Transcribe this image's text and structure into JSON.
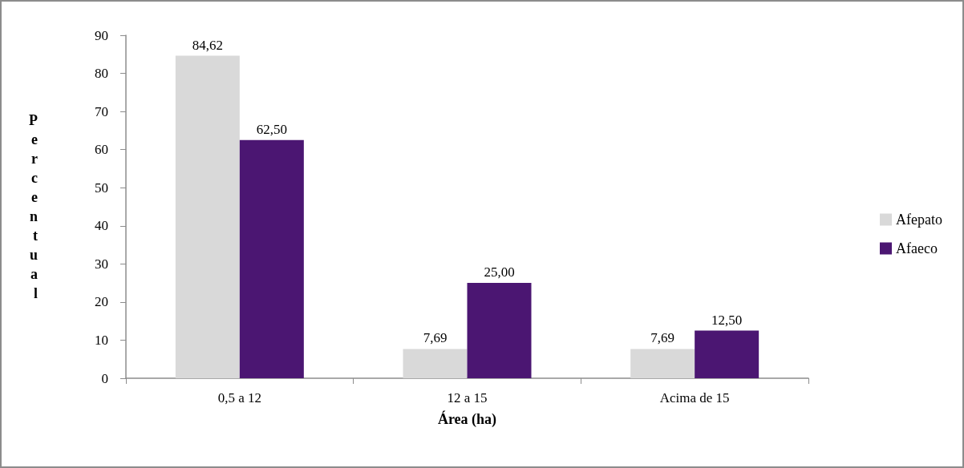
{
  "chart_data": {
    "type": "bar",
    "xlabel": "Área (ha)",
    "ylabel": "Percentual",
    "categories": [
      "0,5 a 12",
      "12 a 15",
      "Acima de 15"
    ],
    "series": [
      {
        "name": "Afepato",
        "color": "#d9d9d9",
        "values": [
          84.62,
          7.69,
          7.69
        ],
        "value_labels": [
          "84,62",
          "7,69",
          "7,69"
        ]
      },
      {
        "name": "Afaeco",
        "color": "#4b1672",
        "values": [
          62.5,
          25,
          12.5
        ],
        "value_labels": [
          "62,50",
          "25,00",
          "12,50"
        ]
      }
    ],
    "ylim": [
      0,
      90
    ],
    "yticks": [
      0,
      10,
      20,
      30,
      40,
      50,
      60,
      70,
      80,
      90
    ],
    "grid": false,
    "legend": "right"
  }
}
